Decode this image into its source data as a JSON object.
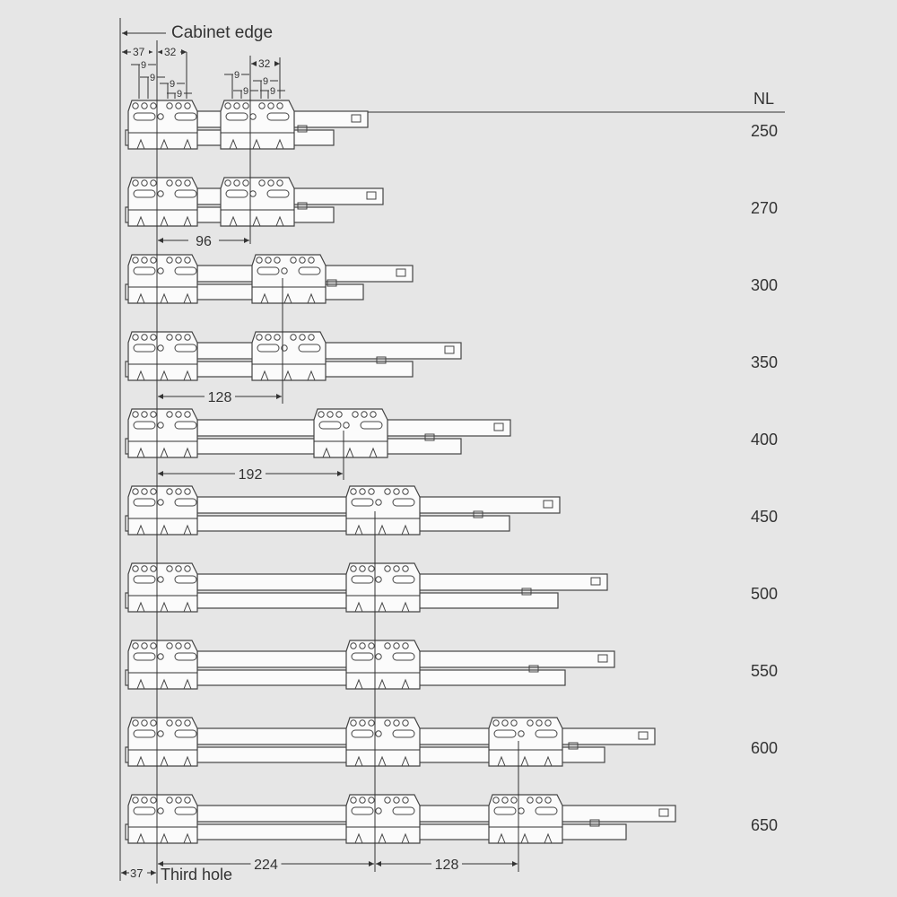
{
  "labels": {
    "cabinet_edge": "Cabinet edge",
    "third_hole": "Third hole",
    "nl_header": "NL"
  },
  "top_dims": {
    "a": "37",
    "b": "32",
    "c": "32",
    "hole": "9"
  },
  "rows": [
    {
      "nl": "250"
    },
    {
      "nl": "270"
    },
    {
      "nl": "300"
    },
    {
      "nl": "350"
    },
    {
      "nl": "400"
    },
    {
      "nl": "450"
    },
    {
      "nl": "500"
    },
    {
      "nl": "550"
    },
    {
      "nl": "600"
    },
    {
      "nl": "650"
    }
  ],
  "dimensions": {
    "d96": "96",
    "d128a": "128",
    "d192": "192",
    "d224": "224",
    "d128b": "128",
    "d37": "37"
  },
  "colors": {
    "background": "#e6e6e6",
    "part_fill": "#fbfbfb",
    "line": "#333333"
  }
}
